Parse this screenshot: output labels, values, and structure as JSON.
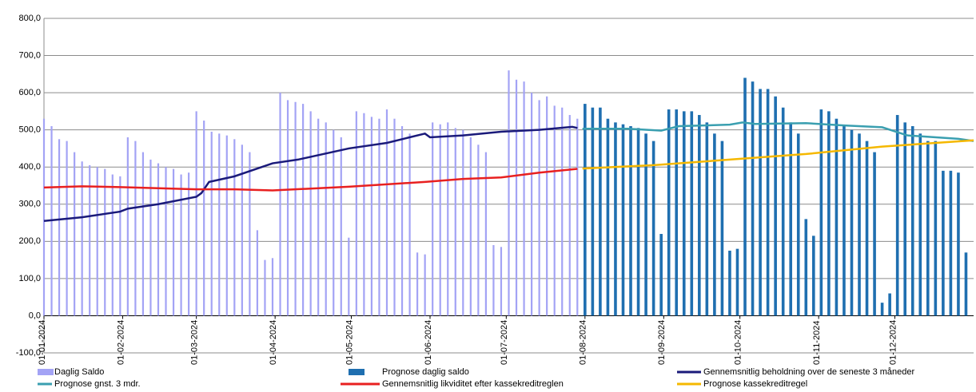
{
  "chart_data": {
    "type": "combo",
    "xlim": [
      0,
      366
    ],
    "xticks": [
      {
        "value": 0,
        "label": "01-01-2024"
      },
      {
        "value": 31,
        "label": "01-02-2024"
      },
      {
        "value": 60,
        "label": "01-03-2024"
      },
      {
        "value": 91,
        "label": "01-04-2024"
      },
      {
        "value": 121,
        "label": "01-05-2024"
      },
      {
        "value": 152,
        "label": "01-06-2024"
      },
      {
        "value": 182,
        "label": "01-07-2024"
      },
      {
        "value": 213,
        "label": "01-08-2024"
      },
      {
        "value": 244,
        "label": "01-09-2024"
      },
      {
        "value": 274,
        "label": "01-10-2024"
      },
      {
        "value": 305,
        "label": "01-11-2024"
      },
      {
        "value": 335,
        "label": "01-12-2024"
      }
    ],
    "ylim": [
      -100,
      800
    ],
    "yticks": [
      {
        "value": -100,
        "label": "-100,0"
      },
      {
        "value": 0,
        "label": "0,0"
      },
      {
        "value": 100,
        "label": "100,0"
      },
      {
        "value": 200,
        "label": "200,0"
      },
      {
        "value": 300,
        "label": "300,0"
      },
      {
        "value": 400,
        "label": "400,0"
      },
      {
        "value": 500,
        "label": "500,0"
      },
      {
        "value": 600,
        "label": "600,0"
      },
      {
        "value": 700,
        "label": "700,0"
      },
      {
        "value": 800,
        "label": "800,0"
      }
    ],
    "grid": true,
    "legend": "bottom",
    "series": [
      {
        "name": "Daglig Saldo",
        "type": "bar",
        "color": "#a3a3f5",
        "x": [
          0,
          3,
          6,
          9,
          12,
          15,
          18,
          21,
          24,
          27,
          30,
          33,
          36,
          39,
          42,
          45,
          48,
          51,
          54,
          57,
          60,
          63,
          66,
          69,
          72,
          75,
          78,
          81,
          84,
          87,
          90,
          93,
          96,
          99,
          102,
          105,
          108,
          111,
          114,
          117,
          120,
          123,
          126,
          129,
          132,
          135,
          138,
          141,
          144,
          147,
          150,
          153,
          156,
          159,
          162,
          165,
          168,
          171,
          174,
          177,
          180,
          183,
          186,
          189,
          192,
          195,
          198,
          201,
          204,
          207,
          210
        ],
        "values": [
          530,
          510,
          475,
          470,
          440,
          415,
          405,
          400,
          395,
          380,
          375,
          480,
          470,
          440,
          420,
          410,
          400,
          395,
          380,
          385,
          550,
          525,
          495,
          490,
          485,
          475,
          460,
          440,
          230,
          150,
          155,
          600,
          580,
          575,
          570,
          550,
          530,
          520,
          500,
          480,
          210,
          550,
          545,
          535,
          530,
          555,
          530,
          510,
          490,
          170,
          165,
          520,
          515,
          520,
          505,
          500,
          480,
          460,
          440,
          190,
          185,
          660,
          635,
          630,
          600,
          580,
          590,
          565,
          560,
          540,
          530
        ]
      },
      {
        "name": "Prognose daglig saldo",
        "type": "bar",
        "color": "#1f6fb0",
        "x": [
          213,
          216,
          219,
          222,
          225,
          228,
          231,
          234,
          237,
          240,
          243,
          246,
          249,
          252,
          255,
          258,
          261,
          264,
          267,
          270,
          273,
          276,
          279,
          282,
          285,
          288,
          291,
          294,
          297,
          300,
          303,
          306,
          309,
          312,
          315,
          318,
          321,
          324,
          327,
          330,
          333,
          336,
          339,
          342,
          345,
          348,
          351,
          354,
          357,
          360,
          363
        ],
        "values": [
          570,
          560,
          560,
          530,
          520,
          515,
          510,
          505,
          490,
          470,
          220,
          555,
          555,
          550,
          550,
          540,
          520,
          490,
          470,
          175,
          180,
          640,
          630,
          610,
          610,
          590,
          560,
          520,
          490,
          260,
          215,
          555,
          550,
          530,
          510,
          500,
          490,
          470,
          440,
          35,
          60,
          540,
          520,
          510,
          490,
          470,
          470,
          390,
          390,
          385,
          170
        ]
      },
      {
        "name": "Gennemsnitlig beholdning over de seneste 3 måneder",
        "type": "line",
        "color": "#1a1a7a",
        "x": [
          0,
          15,
          30,
          33,
          45,
          60,
          62,
          65,
          75,
          90,
          100,
          120,
          135,
          150,
          152,
          165,
          180,
          195,
          208,
          210
        ],
        "values": [
          255,
          265,
          280,
          288,
          300,
          320,
          330,
          360,
          375,
          410,
          420,
          450,
          465,
          490,
          480,
          485,
          495,
          500,
          508,
          505
        ]
      },
      {
        "name": "Prognose gnst. 3 mdr.",
        "type": "line",
        "color": "#3a9fb0",
        "x": [
          212,
          230,
          243,
          250,
          270,
          275,
          280,
          300,
          315,
          330,
          340,
          360,
          366
        ],
        "values": [
          503,
          503,
          498,
          510,
          514,
          520,
          516,
          518,
          512,
          507,
          485,
          476,
          470
        ]
      },
      {
        "name": "Gennemsnitlig likviditet efter kassekreditreglen",
        "type": "line",
        "color": "#e82020",
        "x": [
          0,
          15,
          30,
          60,
          75,
          90,
          120,
          150,
          165,
          180,
          195,
          210
        ],
        "values": [
          345,
          348,
          346,
          340,
          340,
          337,
          347,
          360,
          368,
          372,
          385,
          395
        ]
      },
      {
        "name": "Prognose kassekreditregel",
        "type": "line",
        "color": "#f5b800",
        "x": [
          212,
          240,
          270,
          300,
          330,
          366
        ],
        "values": [
          396,
          405,
          420,
          435,
          455,
          472
        ]
      }
    ]
  }
}
